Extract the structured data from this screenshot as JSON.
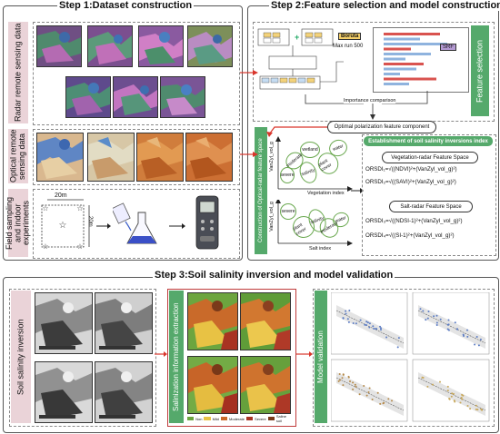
{
  "step1": {
    "title": "Step 1:Dataset construction",
    "radar_label": "Radar remote sensing data",
    "optical_label": "Optical remote sensing data",
    "field_label": "Field sampling and indoor experiments",
    "plot_width": "20m",
    "plot_height": "20m"
  },
  "step2": {
    "title": "Step 2:Feature selection and model construction",
    "boruta_label": "Boruta",
    "max_run": "Max run 500",
    "srf_label": "SRF",
    "feature_selection": "Feature selection",
    "importance_comparison": "Importance comparison",
    "optimal_component": "Optimal polarization feature component",
    "feature_space_label": "Construction of Optical-radar feature space",
    "veg_axis_x": "Vegetation index",
    "veg_axis_y": "VanZyl_vol_g",
    "salt_axis_x": "Salt index",
    "salt_axis_y": "VanZyl_vol_g",
    "ellipses_top": [
      "water",
      "plant cover",
      "wetland",
      "salinity",
      "moderate",
      "severe"
    ],
    "ellipses_bottom": [
      "severe",
      "plant cover",
      "salinity",
      "moderate",
      "water"
    ],
    "inversion_header": "Establishment of soil salinity inversions index",
    "veg_radar_space": "Vegetation-radar Feature Space",
    "salt_radar_space": "Salt-radar Feature Space",
    "eq1": "ORSDI₁=√((NDVI)²+(VanZyl_vol_g)²)",
    "eq2": "ORSDI₂=√((SAVI)²+(VanZyl_vol_g)²)",
    "eq3": "ORSDI₃=√((NDSI-1)²+(VanZyl_vol_g)²)",
    "eq4": "ORSDI₄=√((SI-1)²+(VanZyl_vol_g)²)"
  },
  "step3": {
    "title": "Step 3:Soil salinity inversion and model validation",
    "inversion_label": "Soil salinity inversion",
    "extraction_label": "Salinization information extraction",
    "validation_label": "Model validation",
    "legend": [
      "Non",
      "Mild",
      "Moderate",
      "Severe",
      "Saline soil"
    ]
  },
  "colors": {
    "pink": "#ead3d8",
    "green": "#55a96b",
    "arrow_red": "#d9352b"
  }
}
